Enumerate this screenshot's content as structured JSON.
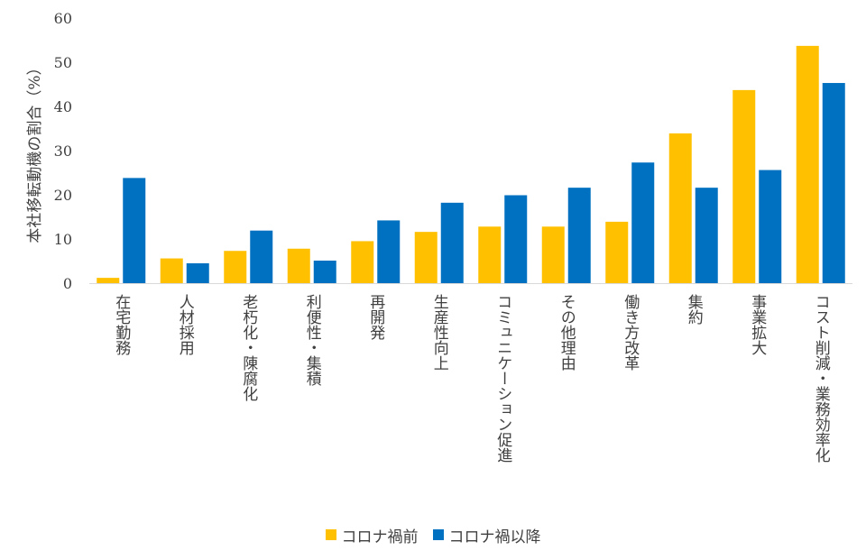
{
  "chart_data": {
    "type": "bar",
    "ylabel": "本社移転動機の割合（%）",
    "ylim": [
      0,
      60
    ],
    "yticks": [
      0,
      10,
      20,
      30,
      40,
      50,
      60
    ],
    "categories": [
      "在宅勤務",
      "人材採用",
      "老朽化・陳腐化",
      "利便性・集積",
      "再開発",
      "生産性向上",
      "コミュニケーション促進",
      "その他理由",
      "働き方改革",
      "集約",
      "事業拡大",
      "コスト削減・業務効率化"
    ],
    "series": [
      {
        "name": "コロナ禍前",
        "color": "#FFC000",
        "values": [
          1.2,
          5.6,
          7.3,
          7.8,
          9.5,
          11.6,
          12.8,
          12.8,
          13.9,
          33.9,
          43.7,
          53.7
        ]
      },
      {
        "name": "コロナ禍以降",
        "color": "#0070C0",
        "values": [
          23.8,
          4.5,
          11.9,
          5.1,
          14.2,
          18.2,
          19.9,
          21.6,
          27.3,
          21.6,
          25.6,
          45.3
        ]
      }
    ],
    "grid": false,
    "legend": "bottom"
  }
}
